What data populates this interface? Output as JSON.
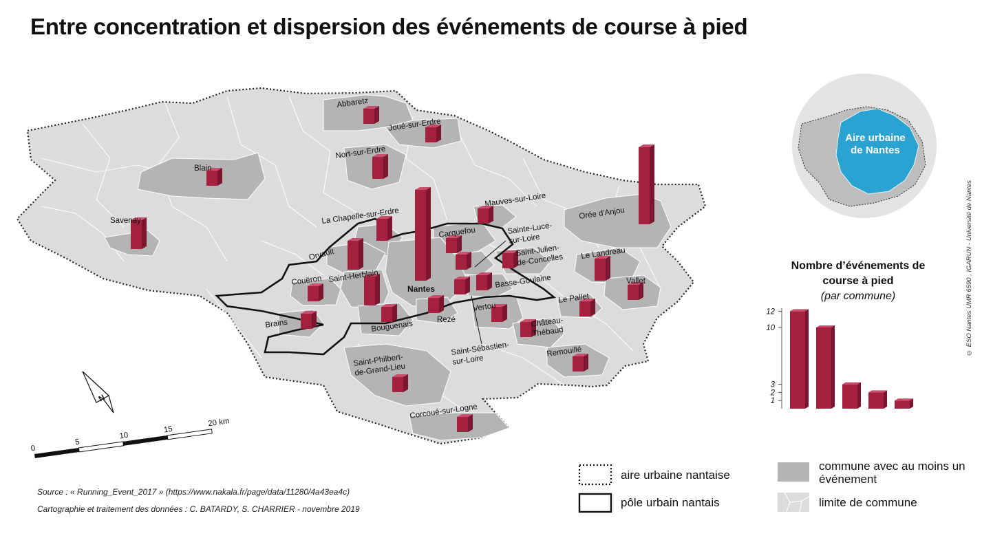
{
  "title": "Entre concentration et dispersion des événements de course à pied",
  "inset": {
    "label_line1": "Aire urbaine",
    "label_line2": "de Nantes"
  },
  "copyright": "© ESO Nantes UMR 6590 , IGARUN - Université de Nantes",
  "communes": [
    {
      "name": "Abbaretz",
      "events": 1
    },
    {
      "name": "Joué-sur-Erdre",
      "events": 1
    },
    {
      "name": "Nort-sur-Erdre",
      "events": 2
    },
    {
      "name": "Blain",
      "events": 1
    },
    {
      "name": "Savenay",
      "events": 3
    },
    {
      "name": "La Chapelle-sur-Erdre",
      "events": 2
    },
    {
      "name": "Mauves-sur-Loire",
      "events": 1
    },
    {
      "name": "Orée d'Anjou",
      "events": 10
    },
    {
      "name": "Carquefou",
      "events": 1
    },
    {
      "name": "Sainte-Luce-sur-Loire",
      "events": 1
    },
    {
      "name": "Orvault",
      "events": 3
    },
    {
      "name": "Saint-Julien-de-Concelles",
      "events": 1
    },
    {
      "name": "Le Landreau",
      "events": 2
    },
    {
      "name": "Nantes",
      "events": 12
    },
    {
      "name": "Saint-Herblain",
      "events": 3
    },
    {
      "name": "Couëron",
      "events": 1
    },
    {
      "name": "Basse-Goulaine",
      "events": 1
    },
    {
      "name": "Vallet",
      "events": 1
    },
    {
      "name": "Le Pallet",
      "events": 1
    },
    {
      "name": "Brains",
      "events": 1
    },
    {
      "name": "Bouguenais",
      "events": 1
    },
    {
      "name": "Rezé",
      "events": 1
    },
    {
      "name": "Vertou",
      "events": 1
    },
    {
      "name": "Château-Thébaud",
      "events": 1
    },
    {
      "name": "Saint-Sébastien-sur-Loire",
      "events": 1
    },
    {
      "name": "Remouillé",
      "events": 1
    },
    {
      "name": "Saint-Philbert-de-Grand-Lieu",
      "events": 1
    },
    {
      "name": "Corcoué-sur-Logne",
      "events": 1
    }
  ],
  "legend_size": {
    "title": "Nombre d’événements de course à pied",
    "subtitle": "(par commune)",
    "values": [
      12,
      10,
      3,
      2,
      1
    ],
    "ticks": [
      "12",
      "10",
      "3",
      "2",
      "1"
    ]
  },
  "scale_bar": {
    "labels": [
      "0",
      "5",
      "10",
      "15",
      "20 km"
    ]
  },
  "north_arrow": {
    "label": "N"
  },
  "legend": {
    "aire_urbaine": "aire urbaine nantaise",
    "pole_urbain": "pôle urbain nantais",
    "commune_event": "commune avec au moins un événement",
    "limite_commune": "limite de commune"
  },
  "source": {
    "line1": "Source : « Running_Event_2017 » (https://www.nakala.fr/page/data/11280/4a43ea4c)",
    "line2": "Cartographie et traitement des données  : C. BATARDY, S. CHARRIER - novembre 2019"
  },
  "colors": {
    "bar_front": "#a3203f",
    "bar_side": "#7c1530",
    "bar_top": "#c9506c",
    "commune_event": "#b4b4b4",
    "commune_other": "#d9d9d9",
    "inset_urban": "#2aa3d3"
  }
}
